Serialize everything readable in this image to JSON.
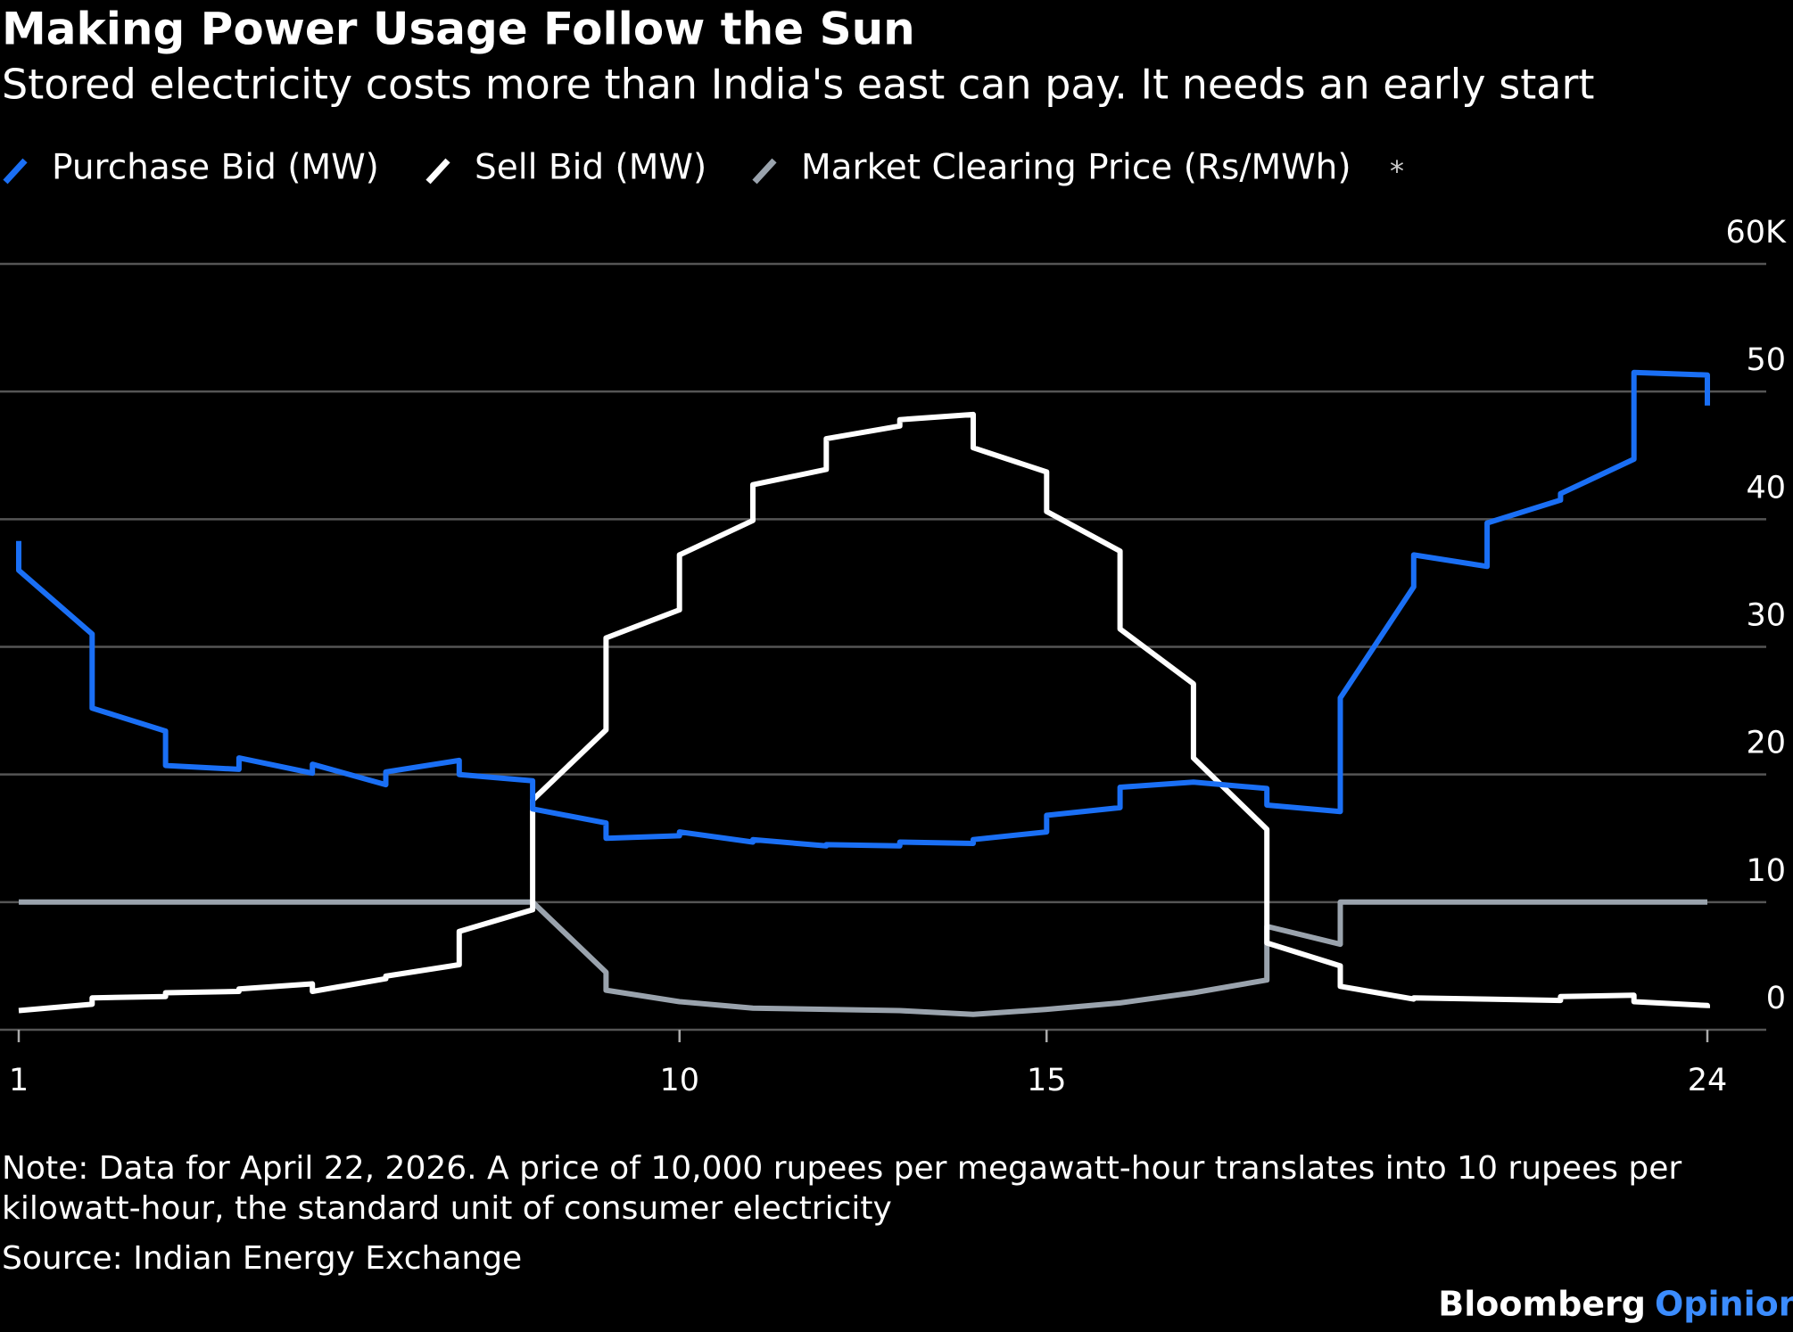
{
  "chart_data": {
    "type": "line",
    "title": "Making Power Usage Follow the Sun",
    "subtitle": "Stored electricity costs more than India's east can pay. It needs an early start",
    "legend_note": "*",
    "x": [
      1,
      1,
      2,
      2,
      3,
      3,
      4,
      4,
      5,
      5,
      6,
      6,
      7,
      7,
      8,
      8,
      9,
      9,
      10,
      10,
      11,
      11,
      12,
      12,
      13,
      13,
      14,
      14,
      15,
      15,
      16,
      16,
      17,
      17,
      18,
      18,
      19,
      19,
      20,
      20,
      21,
      21,
      22,
      22,
      23,
      23,
      24,
      24
    ],
    "series": [
      {
        "name": "Purchase Bid (MW)",
        "color": "#1a6ff5",
        "values": [
          38300,
          36000,
          31000,
          25200,
          23400,
          20700,
          20400,
          21300,
          20100,
          20800,
          19200,
          20200,
          21100,
          20000,
          19500,
          17300,
          16200,
          15000,
          15200,
          15500,
          14700,
          14900,
          14400,
          14500,
          14400,
          14700,
          14600,
          14900,
          15500,
          16800,
          17400,
          19000,
          19400,
          19400,
          18900,
          17600,
          17100,
          26000,
          34700,
          37200,
          36300,
          39700,
          41500,
          42000,
          44700,
          51500,
          51300,
          48900
        ]
      },
      {
        "name": "Sell Bid (MW)",
        "color": "#ffffff",
        "values": [
          1500,
          1500,
          2000,
          2500,
          2600,
          2900,
          3000,
          3200,
          3600,
          3000,
          4000,
          4200,
          5100,
          7700,
          9400,
          18000,
          23500,
          30700,
          32900,
          37200,
          39900,
          42700,
          43900,
          46300,
          47300,
          47800,
          48200,
          45600,
          43700,
          40600,
          37500,
          31400,
          27100,
          21300,
          15700,
          6800,
          5000,
          3400,
          2400,
          2500,
          2400,
          2400,
          2300,
          2600,
          2700,
          2200,
          1900,
          1700
        ]
      },
      {
        "name": "Market Clearing Price (Rs/MWh)",
        "color": "#9aa3ad",
        "values": [
          10000,
          10000,
          10000,
          10000,
          10000,
          10000,
          10000,
          10000,
          10000,
          10000,
          10000,
          10000,
          10000,
          10000,
          10000,
          10000,
          4500,
          3100,
          2200,
          2200,
          1700,
          1700,
          1600,
          1600,
          1500,
          1500,
          1200,
          1200,
          1600,
          1600,
          2100,
          2100,
          2900,
          2900,
          3900,
          8100,
          6700,
          10000,
          10000,
          10000,
          10000,
          10000,
          10000,
          10000,
          10000,
          10000,
          10000,
          10000
        ]
      }
    ],
    "xlim": [
      1,
      24
    ],
    "xticks": [
      1,
      10,
      15,
      24
    ],
    "ylim": [
      0,
      60000
    ],
    "yticks": [
      0,
      {
        "value": 10000,
        "label": "10"
      },
      {
        "value": 20000,
        "label": "20"
      },
      {
        "value": 30000,
        "label": "30"
      },
      {
        "value": 40000,
        "label": "40"
      },
      {
        "value": 50000,
        "label": "50"
      },
      {
        "value": 60000,
        "label": "60K"
      }
    ],
    "grid": true,
    "note": [
      "Note: Data for April 22, 2026. A price of 10,000 rupees per megawatt-hour translates into 10 rupees per",
      "kilowatt-hour, the standard unit of consumer electricity"
    ],
    "source": "Source: Indian Energy Exchange",
    "brand": [
      "Bloomberg",
      "Opinion"
    ]
  }
}
